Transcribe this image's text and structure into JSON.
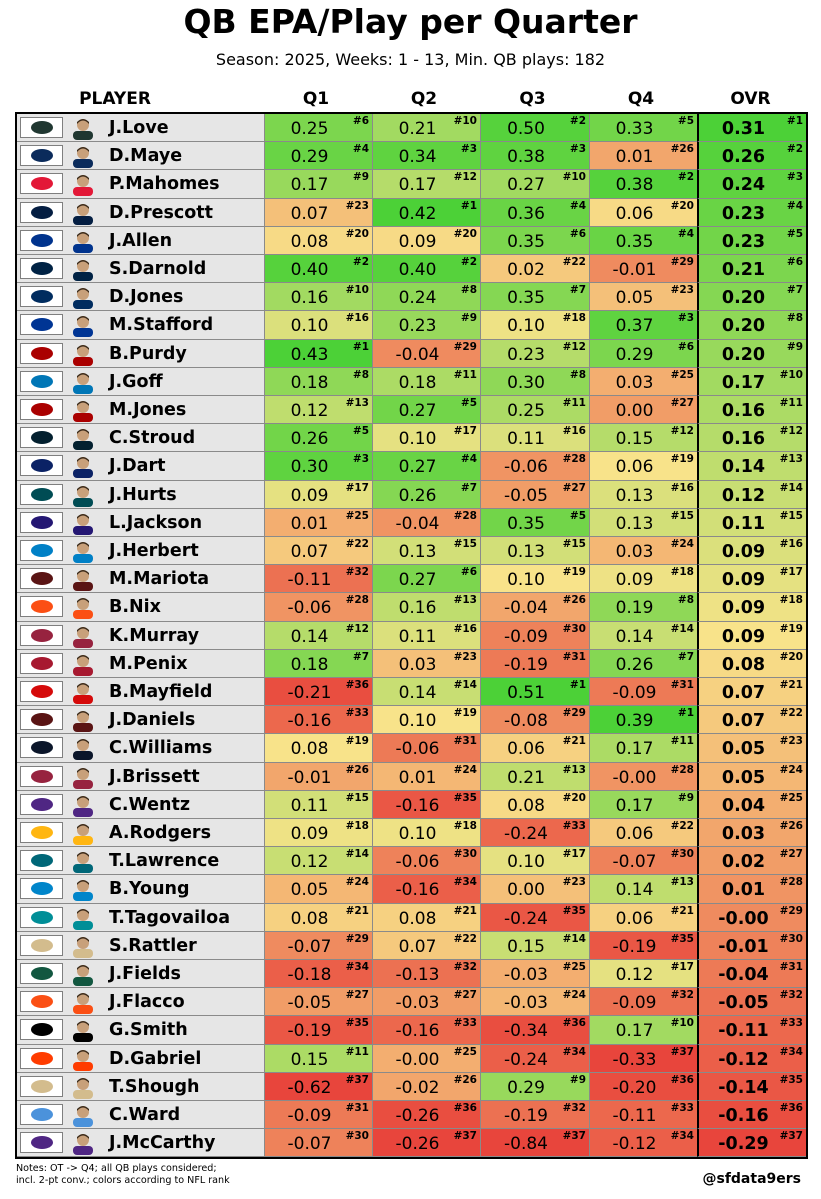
{
  "title": "QB EPA/Play per Quarter",
  "subtitle": "Season: 2025, Weeks: 1 - 13, Min. QB plays: 182",
  "notes_line1": "Notes: OT -> Q4; all QB plays considered;",
  "notes_line2": "incl. 2-pt conv.; colors according to NFL rank",
  "credit": "@sfdata9ers",
  "columns": {
    "player": "PLAYER",
    "q1": "Q1",
    "q2": "Q2",
    "q3": "Q3",
    "q4": "Q4",
    "ovr": "OVR"
  },
  "colors": {
    "best": "#4cd137",
    "mid": "#f8e38a",
    "worst": "#e8453c",
    "player_bg": "#e6e6e6"
  },
  "chart_data": {
    "type": "table",
    "title": "QB EPA/Play per Quarter",
    "subtitle": "Season: 2025, Weeks: 1 - 13, Min. QB plays: 182",
    "columns": [
      "PLAYER",
      "Q1",
      "Q2",
      "Q3",
      "Q4",
      "OVR"
    ],
    "rank_max": 37,
    "rows": [
      {
        "team": "GB",
        "team_color": "#203731",
        "player": "J.Love",
        "q1": [
          "0.25",
          6
        ],
        "q2": [
          "0.21",
          10
        ],
        "q3": [
          "0.50",
          2
        ],
        "q4": [
          "0.33",
          5
        ],
        "ovr": [
          "0.31",
          1
        ]
      },
      {
        "team": "NE",
        "team_color": "#0b2b5b",
        "player": "D.Maye",
        "q1": [
          "0.29",
          4
        ],
        "q2": [
          "0.34",
          3
        ],
        "q3": [
          "0.38",
          3
        ],
        "q4": [
          "0.01",
          26
        ],
        "ovr": [
          "0.26",
          2
        ]
      },
      {
        "team": "KC",
        "team_color": "#e31837",
        "player": "P.Mahomes",
        "q1": [
          "0.17",
          9
        ],
        "q2": [
          "0.17",
          12
        ],
        "q3": [
          "0.27",
          10
        ],
        "q4": [
          "0.38",
          2
        ],
        "ovr": [
          "0.24",
          3
        ]
      },
      {
        "team": "DAL",
        "team_color": "#041e42",
        "player": "D.Prescott",
        "q1": [
          "0.07",
          23
        ],
        "q2": [
          "0.42",
          1
        ],
        "q3": [
          "0.36",
          4
        ],
        "q4": [
          "0.06",
          20
        ],
        "ovr": [
          "0.23",
          4
        ]
      },
      {
        "team": "BUF",
        "team_color": "#00338d",
        "player": "J.Allen",
        "q1": [
          "0.08",
          20
        ],
        "q2": [
          "0.09",
          20
        ],
        "q3": [
          "0.35",
          6
        ],
        "q4": [
          "0.35",
          4
        ],
        "ovr": [
          "0.23",
          5
        ]
      },
      {
        "team": "SEA",
        "team_color": "#002244",
        "player": "S.Darnold",
        "q1": [
          "0.40",
          2
        ],
        "q2": [
          "0.40",
          2
        ],
        "q3": [
          "0.02",
          22
        ],
        "q4": [
          "-0.01",
          29
        ],
        "ovr": [
          "0.21",
          6
        ]
      },
      {
        "team": "IND",
        "team_color": "#002c5f",
        "player": "D.Jones",
        "q1": [
          "0.16",
          10
        ],
        "q2": [
          "0.24",
          8
        ],
        "q3": [
          "0.35",
          7
        ],
        "q4": [
          "0.05",
          23
        ],
        "ovr": [
          "0.20",
          7
        ]
      },
      {
        "team": "LAR",
        "team_color": "#003594",
        "player": "M.Stafford",
        "q1": [
          "0.10",
          16
        ],
        "q2": [
          "0.23",
          9
        ],
        "q3": [
          "0.10",
          18
        ],
        "q4": [
          "0.37",
          3
        ],
        "ovr": [
          "0.20",
          8
        ]
      },
      {
        "team": "SF",
        "team_color": "#aa0000",
        "player": "B.Purdy",
        "q1": [
          "0.43",
          1
        ],
        "q2": [
          "-0.04",
          29
        ],
        "q3": [
          "0.23",
          12
        ],
        "q4": [
          "0.29",
          6
        ],
        "ovr": [
          "0.20",
          9
        ]
      },
      {
        "team": "DET",
        "team_color": "#0076b6",
        "player": "J.Goff",
        "q1": [
          "0.18",
          8
        ],
        "q2": [
          "0.18",
          11
        ],
        "q3": [
          "0.30",
          8
        ],
        "q4": [
          "0.03",
          25
        ],
        "ovr": [
          "0.17",
          10
        ]
      },
      {
        "team": "SF",
        "team_color": "#aa0000",
        "player": "M.Jones",
        "q1": [
          "0.12",
          13
        ],
        "q2": [
          "0.27",
          5
        ],
        "q3": [
          "0.25",
          11
        ],
        "q4": [
          "0.00",
          27
        ],
        "ovr": [
          "0.16",
          11
        ]
      },
      {
        "team": "HOU",
        "team_color": "#03202f",
        "player": "C.Stroud",
        "q1": [
          "0.26",
          5
        ],
        "q2": [
          "0.10",
          17
        ],
        "q3": [
          "0.11",
          16
        ],
        "q4": [
          "0.15",
          12
        ],
        "ovr": [
          "0.16",
          12
        ]
      },
      {
        "team": "NYG",
        "team_color": "#0b2265",
        "player": "J.Dart",
        "q1": [
          "0.30",
          3
        ],
        "q2": [
          "0.27",
          4
        ],
        "q3": [
          "-0.06",
          28
        ],
        "q4": [
          "0.06",
          19
        ],
        "ovr": [
          "0.14",
          13
        ]
      },
      {
        "team": "PHI",
        "team_color": "#004c54",
        "player": "J.Hurts",
        "q1": [
          "0.09",
          17
        ],
        "q2": [
          "0.26",
          7
        ],
        "q3": [
          "-0.05",
          27
        ],
        "q4": [
          "0.13",
          16
        ],
        "ovr": [
          "0.12",
          14
        ]
      },
      {
        "team": "BAL",
        "team_color": "#241773",
        "player": "L.Jackson",
        "q1": [
          "0.01",
          25
        ],
        "q2": [
          "-0.04",
          28
        ],
        "q3": [
          "0.35",
          5
        ],
        "q4": [
          "0.13",
          15
        ],
        "ovr": [
          "0.11",
          15
        ]
      },
      {
        "team": "LAC",
        "team_color": "#0080c6",
        "player": "J.Herbert",
        "q1": [
          "0.07",
          22
        ],
        "q2": [
          "0.13",
          15
        ],
        "q3": [
          "0.13",
          15
        ],
        "q4": [
          "0.03",
          24
        ],
        "ovr": [
          "0.09",
          16
        ]
      },
      {
        "team": "WAS",
        "team_color": "#5a1414",
        "player": "M.Mariota",
        "q1": [
          "-0.11",
          32
        ],
        "q2": [
          "0.27",
          6
        ],
        "q3": [
          "0.10",
          19
        ],
        "q4": [
          "0.09",
          18
        ],
        "ovr": [
          "0.09",
          17
        ]
      },
      {
        "team": "DEN",
        "team_color": "#fb4f14",
        "player": "B.Nix",
        "q1": [
          "-0.06",
          28
        ],
        "q2": [
          "0.16",
          13
        ],
        "q3": [
          "-0.04",
          26
        ],
        "q4": [
          "0.19",
          8
        ],
        "ovr": [
          "0.09",
          18
        ]
      },
      {
        "team": "ARI",
        "team_color": "#97233f",
        "player": "K.Murray",
        "q1": [
          "0.14",
          12
        ],
        "q2": [
          "0.11",
          16
        ],
        "q3": [
          "-0.09",
          30
        ],
        "q4": [
          "0.14",
          14
        ],
        "ovr": [
          "0.09",
          19
        ]
      },
      {
        "team": "ATL",
        "team_color": "#a71930",
        "player": "M.Penix",
        "q1": [
          "0.18",
          7
        ],
        "q2": [
          "0.03",
          23
        ],
        "q3": [
          "-0.19",
          31
        ],
        "q4": [
          "0.26",
          7
        ],
        "ovr": [
          "0.08",
          20
        ]
      },
      {
        "team": "TB",
        "team_color": "#d50a0a",
        "player": "B.Mayfield",
        "q1": [
          "-0.21",
          36
        ],
        "q2": [
          "0.14",
          14
        ],
        "q3": [
          "0.51",
          1
        ],
        "q4": [
          "-0.09",
          31
        ],
        "ovr": [
          "0.07",
          21
        ]
      },
      {
        "team": "WAS",
        "team_color": "#5a1414",
        "player": "J.Daniels",
        "q1": [
          "-0.16",
          33
        ],
        "q2": [
          "0.10",
          19
        ],
        "q3": [
          "-0.08",
          29
        ],
        "q4": [
          "0.39",
          1
        ],
        "ovr": [
          "0.07",
          22
        ]
      },
      {
        "team": "CHI",
        "team_color": "#0b162a",
        "player": "C.Williams",
        "q1": [
          "0.08",
          19
        ],
        "q2": [
          "-0.06",
          31
        ],
        "q3": [
          "0.06",
          21
        ],
        "q4": [
          "0.17",
          11
        ],
        "ovr": [
          "0.05",
          23
        ]
      },
      {
        "team": "ARI",
        "team_color": "#97233f",
        "player": "J.Brissett",
        "q1": [
          "-0.01",
          26
        ],
        "q2": [
          "0.01",
          24
        ],
        "q3": [
          "0.21",
          13
        ],
        "q4": [
          "-0.00",
          28
        ],
        "ovr": [
          "0.05",
          24
        ]
      },
      {
        "team": "MIN",
        "team_color": "#4f2683",
        "player": "C.Wentz",
        "q1": [
          "0.11",
          15
        ],
        "q2": [
          "-0.16",
          35
        ],
        "q3": [
          "0.08",
          20
        ],
        "q4": [
          "0.17",
          9
        ],
        "ovr": [
          "0.04",
          25
        ]
      },
      {
        "team": "PIT",
        "team_color": "#ffb612",
        "player": "A.Rodgers",
        "q1": [
          "0.09",
          18
        ],
        "q2": [
          "0.10",
          18
        ],
        "q3": [
          "-0.24",
          33
        ],
        "q4": [
          "0.06",
          22
        ],
        "ovr": [
          "0.03",
          26
        ]
      },
      {
        "team": "JAX",
        "team_color": "#006778",
        "player": "T.Lawrence",
        "q1": [
          "0.12",
          14
        ],
        "q2": [
          "-0.06",
          30
        ],
        "q3": [
          "0.10",
          17
        ],
        "q4": [
          "-0.07",
          30
        ],
        "ovr": [
          "0.02",
          27
        ]
      },
      {
        "team": "CAR",
        "team_color": "#0085ca",
        "player": "B.Young",
        "q1": [
          "0.05",
          24
        ],
        "q2": [
          "-0.16",
          34
        ],
        "q3": [
          "0.00",
          23
        ],
        "q4": [
          "0.14",
          13
        ],
        "ovr": [
          "0.01",
          28
        ]
      },
      {
        "team": "MIA",
        "team_color": "#008e97",
        "player": "T.Tagovailoa",
        "q1": [
          "0.08",
          21
        ],
        "q2": [
          "0.08",
          21
        ],
        "q3": [
          "-0.24",
          35
        ],
        "q4": [
          "0.06",
          21
        ],
        "ovr": [
          "-0.00",
          29
        ]
      },
      {
        "team": "NO",
        "team_color": "#d3bc8d",
        "player": "S.Rattler",
        "q1": [
          "-0.07",
          29
        ],
        "q2": [
          "0.07",
          22
        ],
        "q3": [
          "0.15",
          14
        ],
        "q4": [
          "-0.19",
          35
        ],
        "ovr": [
          "-0.01",
          30
        ]
      },
      {
        "team": "NYJ",
        "team_color": "#125740",
        "player": "J.Fields",
        "q1": [
          "-0.18",
          34
        ],
        "q2": [
          "-0.13",
          32
        ],
        "q3": [
          "-0.03",
          25
        ],
        "q4": [
          "0.12",
          17
        ],
        "ovr": [
          "-0.04",
          31
        ]
      },
      {
        "team": "CIN",
        "team_color": "#fb4f14",
        "player": "J.Flacco",
        "q1": [
          "-0.05",
          27
        ],
        "q2": [
          "-0.03",
          27
        ],
        "q3": [
          "-0.03",
          24
        ],
        "q4": [
          "-0.09",
          32
        ],
        "ovr": [
          "-0.05",
          32
        ]
      },
      {
        "team": "LV",
        "team_color": "#000000",
        "player": "G.Smith",
        "q1": [
          "-0.19",
          35
        ],
        "q2": [
          "-0.16",
          33
        ],
        "q3": [
          "-0.34",
          36
        ],
        "q4": [
          "0.17",
          10
        ],
        "ovr": [
          "-0.11",
          33
        ]
      },
      {
        "team": "CLE",
        "team_color": "#ff3c00",
        "player": "D.Gabriel",
        "q1": [
          "0.15",
          11
        ],
        "q2": [
          "-0.00",
          25
        ],
        "q3": [
          "-0.24",
          34
        ],
        "q4": [
          "-0.33",
          37
        ],
        "ovr": [
          "-0.12",
          34
        ]
      },
      {
        "team": "NO",
        "team_color": "#d3bc8d",
        "player": "T.Shough",
        "q1": [
          "-0.62",
          37
        ],
        "q2": [
          "-0.02",
          26
        ],
        "q3": [
          "0.29",
          9
        ],
        "q4": [
          "-0.20",
          36
        ],
        "ovr": [
          "-0.14",
          35
        ]
      },
      {
        "team": "TEN",
        "team_color": "#4b92db",
        "player": "C.Ward",
        "q1": [
          "-0.09",
          31
        ],
        "q2": [
          "-0.26",
          36
        ],
        "q3": [
          "-0.19",
          32
        ],
        "q4": [
          "-0.11",
          33
        ],
        "ovr": [
          "-0.16",
          36
        ]
      },
      {
        "team": "MIN",
        "team_color": "#4f2683",
        "player": "J.McCarthy",
        "q1": [
          "-0.07",
          30
        ],
        "q2": [
          "-0.26",
          37
        ],
        "q3": [
          "-0.84",
          37
        ],
        "q4": [
          "-0.12",
          34
        ],
        "ovr": [
          "-0.29",
          37
        ]
      }
    ]
  }
}
